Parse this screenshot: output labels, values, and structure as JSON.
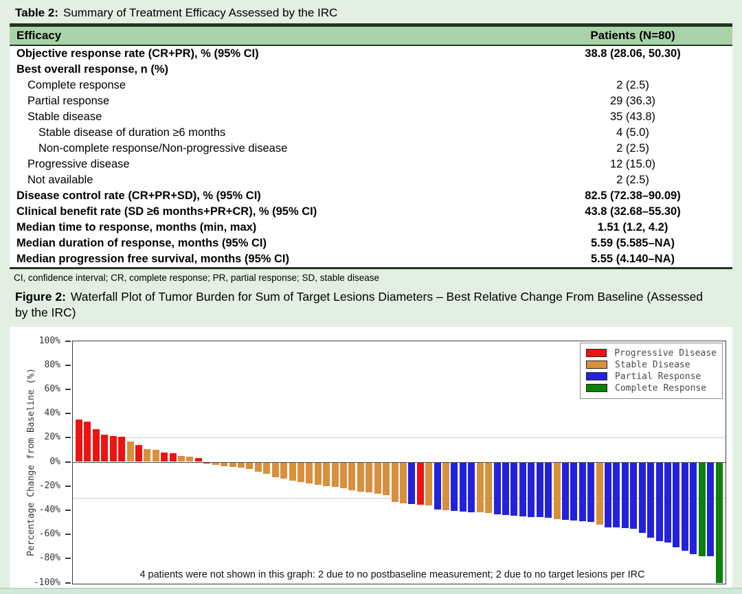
{
  "table": {
    "title_prefix": "Table 2:",
    "title": "Summary of Treatment Efficacy Assessed by the IRC",
    "header": {
      "col1": "Efficacy",
      "col2": "Patients (N=80)"
    },
    "rows": [
      {
        "label": "Objective response rate (CR+PR), % (95% CI)",
        "value": "38.8 (28.06, 50.30)",
        "bold": true,
        "indent": 0
      },
      {
        "label": "Best overall response, n (%)",
        "value": "",
        "bold": true,
        "indent": 0
      },
      {
        "label": "Complete response",
        "value": "2 (2.5)",
        "bold": false,
        "indent": 1
      },
      {
        "label": "Partial response",
        "value": "29 (36.3)",
        "bold": false,
        "indent": 1
      },
      {
        "label": "Stable disease",
        "value": "35 (43.8)",
        "bold": false,
        "indent": 1
      },
      {
        "label": "Stable disease of duration ≥6 months",
        "value": "4 (5.0)",
        "bold": false,
        "indent": 2
      },
      {
        "label": "Non-complete response/Non-progressive disease",
        "value": "2 (2.5)",
        "bold": false,
        "indent": 2
      },
      {
        "label": "Progressive disease",
        "value": "12 (15.0)",
        "bold": false,
        "indent": 1
      },
      {
        "label": "Not available",
        "value": "2 (2.5)",
        "bold": false,
        "indent": 1
      },
      {
        "label": "Disease control rate (CR+PR+SD), % (95% CI)",
        "value": "82.5 (72.38–90.09)",
        "bold": true,
        "indent": 0
      },
      {
        "label": "Clinical benefit rate (SD ≥6 months+PR+CR), % (95% CI)",
        "value": "43.8 (32.68–55.30)",
        "bold": true,
        "indent": 0
      },
      {
        "label": "Median time to response, months (min, max)",
        "value": "1.51 (1.2, 4.2)",
        "bold": true,
        "indent": 0
      },
      {
        "label": "Median duration of response, months (95% CI)",
        "value": "5.59 (5.585–NA)",
        "bold": true,
        "indent": 0
      },
      {
        "label": "Median progression free survival, months (95% CI)",
        "value": "5.55 (4.140–NA)",
        "bold": true,
        "indent": 0
      }
    ],
    "footnote": "CI, confidence interval; CR, complete response; PR, partial response; SD, stable disease"
  },
  "figure": {
    "caption_prefix": "Figure 2:",
    "caption": "Waterfall Plot of Tumor Burden for Sum of Target Lesions Diameters – Best Relative Change From Baseline (Assessed by the IRC)"
  },
  "chart_data": {
    "type": "bar",
    "subtype": "waterfall",
    "title": "",
    "xlabel": "",
    "ylabel": "Percentage Change from Baseline (%)",
    "ylim": [
      -100,
      100
    ],
    "yticks": [
      100,
      80,
      60,
      40,
      20,
      0,
      -20,
      -40,
      -60,
      -80,
      -100
    ],
    "ytick_suffix": "%",
    "reference_lines": [
      20,
      -30
    ],
    "grid": false,
    "legend_position": "top-right",
    "legend": [
      {
        "group": "PD",
        "label": "Progressive Disease",
        "color": "#ee1313"
      },
      {
        "group": "SD",
        "label": "Stable Disease",
        "color": "#d9903d"
      },
      {
        "group": "PR",
        "label": "Partial Response",
        "color": "#2222dd"
      },
      {
        "group": "CR",
        "label": "Complete Response",
        "color": "#0b800b"
      }
    ],
    "colors": {
      "PD": "#ee1313",
      "SD": "#d9903d",
      "PR": "#2222dd",
      "CR": "#0b800b"
    },
    "values": [
      35,
      33,
      27,
      22.5,
      21.5,
      21,
      16.5,
      14,
      10.5,
      10,
      7.5,
      7,
      5,
      4,
      3,
      -1.5,
      -2.7,
      -3.6,
      -4.2,
      -4.8,
      -6,
      -8,
      -10,
      -12.5,
      -14,
      -15.5,
      -17,
      -18,
      -19,
      -20,
      -21,
      -22,
      -23.5,
      -24.5,
      -25.5,
      -26.5,
      -27.5,
      -33,
      -34.5,
      -35,
      -35.5,
      -36,
      -39.5,
      -40,
      -40.5,
      -41,
      -41.5,
      -42,
      -42.5,
      -43.5,
      -44,
      -44.5,
      -45,
      -45.5,
      -46,
      -46.5,
      -47.5,
      -48,
      -48.5,
      -49,
      -49.5,
      -52,
      -54,
      -54.5,
      -55,
      -55.5,
      -59,
      -63,
      -65.5,
      -67,
      -70.5,
      -73.5,
      -76.5,
      -78,
      -78,
      -100
    ],
    "groups": [
      "PD",
      "PD",
      "PD",
      "PD",
      "PD",
      "PD",
      "SD",
      "PD",
      "SD",
      "SD",
      "PD",
      "PD",
      "SD",
      "SD",
      "PD",
      "PD",
      "SD",
      "SD",
      "SD",
      "SD",
      "SD",
      "SD",
      "SD",
      "SD",
      "SD",
      "SD",
      "SD",
      "SD",
      "SD",
      "SD",
      "SD",
      "SD",
      "SD",
      "SD",
      "SD",
      "SD",
      "SD",
      "SD",
      "SD",
      "PR",
      "PD",
      "SD",
      "PR",
      "SD",
      "PR",
      "PR",
      "PR",
      "SD",
      "SD",
      "PR",
      "PR",
      "PR",
      "PR",
      "PR",
      "PR",
      "PR",
      "SD",
      "PR",
      "PR",
      "PR",
      "PR",
      "SD",
      "PR",
      "PR",
      "PR",
      "PR",
      "PR",
      "PR",
      "PR",
      "PR",
      "PR",
      "PR",
      "PR",
      "CR",
      "PR",
      "CR"
    ],
    "annotation": "4 patients were not shown in this graph: 2 due to no postbaseline measurement; 2 due to no target lesions per IRC"
  }
}
